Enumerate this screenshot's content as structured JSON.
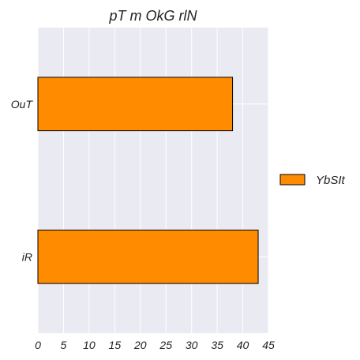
{
  "chart_data": {
    "type": "bar",
    "orientation": "horizontal",
    "title": "pT m OkG rlN",
    "xlabel": "",
    "ylabel": "",
    "categories": [
      "OuT",
      "iR"
    ],
    "series": [
      {
        "name": "YbSIt",
        "values": [
          38,
          43
        ],
        "color": "#ff8c00"
      }
    ],
    "xlim": [
      0,
      45
    ],
    "xticks": [
      0,
      5,
      10,
      15,
      20,
      25,
      30,
      35,
      40,
      45
    ],
    "grid": true,
    "legend_position": "right",
    "style": {
      "background": "#eaeaf2",
      "grid_color": "#ffffff",
      "bar_edge_color": "#000000"
    }
  }
}
